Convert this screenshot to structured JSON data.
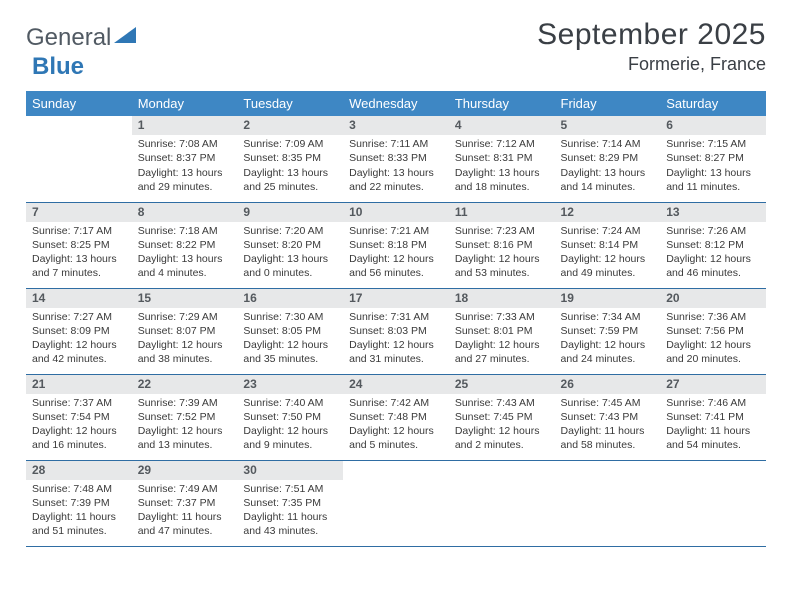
{
  "logo": {
    "word1": "General",
    "word2": "Blue"
  },
  "title": "September 2025",
  "location": "Formerie, France",
  "colors": {
    "header_bg": "#3e87c4",
    "header_text": "#ffffff",
    "daynum_bg": "#e7e8e9",
    "daynum_text": "#54595e",
    "row_sep": "#2f6da3",
    "logo_gray": "#515a63",
    "logo_blue": "#2f77b5"
  },
  "weekdays": [
    "Sunday",
    "Monday",
    "Tuesday",
    "Wednesday",
    "Thursday",
    "Friday",
    "Saturday"
  ],
  "weeks": [
    [
      {
        "blank": true
      },
      {
        "n": "1",
        "sr": "Sunrise: 7:08 AM",
        "ss": "Sunset: 8:37 PM",
        "dl1": "Daylight: 13 hours",
        "dl2": "and 29 minutes."
      },
      {
        "n": "2",
        "sr": "Sunrise: 7:09 AM",
        "ss": "Sunset: 8:35 PM",
        "dl1": "Daylight: 13 hours",
        "dl2": "and 25 minutes."
      },
      {
        "n": "3",
        "sr": "Sunrise: 7:11 AM",
        "ss": "Sunset: 8:33 PM",
        "dl1": "Daylight: 13 hours",
        "dl2": "and 22 minutes."
      },
      {
        "n": "4",
        "sr": "Sunrise: 7:12 AM",
        "ss": "Sunset: 8:31 PM",
        "dl1": "Daylight: 13 hours",
        "dl2": "and 18 minutes."
      },
      {
        "n": "5",
        "sr": "Sunrise: 7:14 AM",
        "ss": "Sunset: 8:29 PM",
        "dl1": "Daylight: 13 hours",
        "dl2": "and 14 minutes."
      },
      {
        "n": "6",
        "sr": "Sunrise: 7:15 AM",
        "ss": "Sunset: 8:27 PM",
        "dl1": "Daylight: 13 hours",
        "dl2": "and 11 minutes."
      }
    ],
    [
      {
        "n": "7",
        "sr": "Sunrise: 7:17 AM",
        "ss": "Sunset: 8:25 PM",
        "dl1": "Daylight: 13 hours",
        "dl2": "and 7 minutes."
      },
      {
        "n": "8",
        "sr": "Sunrise: 7:18 AM",
        "ss": "Sunset: 8:22 PM",
        "dl1": "Daylight: 13 hours",
        "dl2": "and 4 minutes."
      },
      {
        "n": "9",
        "sr": "Sunrise: 7:20 AM",
        "ss": "Sunset: 8:20 PM",
        "dl1": "Daylight: 13 hours",
        "dl2": "and 0 minutes."
      },
      {
        "n": "10",
        "sr": "Sunrise: 7:21 AM",
        "ss": "Sunset: 8:18 PM",
        "dl1": "Daylight: 12 hours",
        "dl2": "and 56 minutes."
      },
      {
        "n": "11",
        "sr": "Sunrise: 7:23 AM",
        "ss": "Sunset: 8:16 PM",
        "dl1": "Daylight: 12 hours",
        "dl2": "and 53 minutes."
      },
      {
        "n": "12",
        "sr": "Sunrise: 7:24 AM",
        "ss": "Sunset: 8:14 PM",
        "dl1": "Daylight: 12 hours",
        "dl2": "and 49 minutes."
      },
      {
        "n": "13",
        "sr": "Sunrise: 7:26 AM",
        "ss": "Sunset: 8:12 PM",
        "dl1": "Daylight: 12 hours",
        "dl2": "and 46 minutes."
      }
    ],
    [
      {
        "n": "14",
        "sr": "Sunrise: 7:27 AM",
        "ss": "Sunset: 8:09 PM",
        "dl1": "Daylight: 12 hours",
        "dl2": "and 42 minutes."
      },
      {
        "n": "15",
        "sr": "Sunrise: 7:29 AM",
        "ss": "Sunset: 8:07 PM",
        "dl1": "Daylight: 12 hours",
        "dl2": "and 38 minutes."
      },
      {
        "n": "16",
        "sr": "Sunrise: 7:30 AM",
        "ss": "Sunset: 8:05 PM",
        "dl1": "Daylight: 12 hours",
        "dl2": "and 35 minutes."
      },
      {
        "n": "17",
        "sr": "Sunrise: 7:31 AM",
        "ss": "Sunset: 8:03 PM",
        "dl1": "Daylight: 12 hours",
        "dl2": "and 31 minutes."
      },
      {
        "n": "18",
        "sr": "Sunrise: 7:33 AM",
        "ss": "Sunset: 8:01 PM",
        "dl1": "Daylight: 12 hours",
        "dl2": "and 27 minutes."
      },
      {
        "n": "19",
        "sr": "Sunrise: 7:34 AM",
        "ss": "Sunset: 7:59 PM",
        "dl1": "Daylight: 12 hours",
        "dl2": "and 24 minutes."
      },
      {
        "n": "20",
        "sr": "Sunrise: 7:36 AM",
        "ss": "Sunset: 7:56 PM",
        "dl1": "Daylight: 12 hours",
        "dl2": "and 20 minutes."
      }
    ],
    [
      {
        "n": "21",
        "sr": "Sunrise: 7:37 AM",
        "ss": "Sunset: 7:54 PM",
        "dl1": "Daylight: 12 hours",
        "dl2": "and 16 minutes."
      },
      {
        "n": "22",
        "sr": "Sunrise: 7:39 AM",
        "ss": "Sunset: 7:52 PM",
        "dl1": "Daylight: 12 hours",
        "dl2": "and 13 minutes."
      },
      {
        "n": "23",
        "sr": "Sunrise: 7:40 AM",
        "ss": "Sunset: 7:50 PM",
        "dl1": "Daylight: 12 hours",
        "dl2": "and 9 minutes."
      },
      {
        "n": "24",
        "sr": "Sunrise: 7:42 AM",
        "ss": "Sunset: 7:48 PM",
        "dl1": "Daylight: 12 hours",
        "dl2": "and 5 minutes."
      },
      {
        "n": "25",
        "sr": "Sunrise: 7:43 AM",
        "ss": "Sunset: 7:45 PM",
        "dl1": "Daylight: 12 hours",
        "dl2": "and 2 minutes."
      },
      {
        "n": "26",
        "sr": "Sunrise: 7:45 AM",
        "ss": "Sunset: 7:43 PM",
        "dl1": "Daylight: 11 hours",
        "dl2": "and 58 minutes."
      },
      {
        "n": "27",
        "sr": "Sunrise: 7:46 AM",
        "ss": "Sunset: 7:41 PM",
        "dl1": "Daylight: 11 hours",
        "dl2": "and 54 minutes."
      }
    ],
    [
      {
        "n": "28",
        "sr": "Sunrise: 7:48 AM",
        "ss": "Sunset: 7:39 PM",
        "dl1": "Daylight: 11 hours",
        "dl2": "and 51 minutes."
      },
      {
        "n": "29",
        "sr": "Sunrise: 7:49 AM",
        "ss": "Sunset: 7:37 PM",
        "dl1": "Daylight: 11 hours",
        "dl2": "and 47 minutes."
      },
      {
        "n": "30",
        "sr": "Sunrise: 7:51 AM",
        "ss": "Sunset: 7:35 PM",
        "dl1": "Daylight: 11 hours",
        "dl2": "and 43 minutes."
      },
      {
        "blank": true
      },
      {
        "blank": true
      },
      {
        "blank": true
      },
      {
        "blank": true
      }
    ]
  ]
}
